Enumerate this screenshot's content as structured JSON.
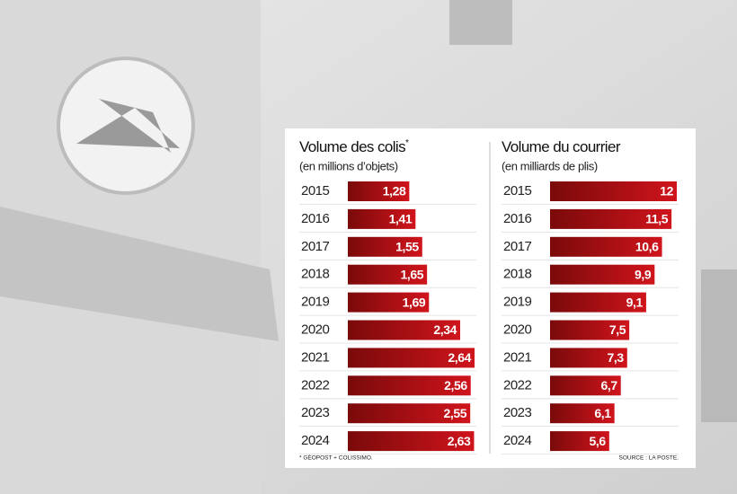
{
  "chart_data": [
    {
      "type": "bar",
      "orientation": "horizontal",
      "title": "Volume des colis",
      "title_note": "*",
      "subtitle": "(en millions d’objets)",
      "categories": [
        "2015",
        "2016",
        "2017",
        "2018",
        "2019",
        "2020",
        "2021",
        "2022",
        "2023",
        "2024"
      ],
      "values": [
        1.28,
        1.41,
        1.55,
        1.65,
        1.69,
        2.34,
        2.64,
        2.56,
        2.55,
        2.63
      ],
      "value_labels": [
        "1,28",
        "1,41",
        "1,55",
        "1,65",
        "1,69",
        "2,34",
        "2,64",
        "2,56",
        "2,55",
        "2,63"
      ],
      "color": "#d0141c"
    },
    {
      "type": "bar",
      "orientation": "horizontal",
      "title": "Volume du courrier",
      "subtitle": "(en milliards de plis)",
      "categories": [
        "2015",
        "2016",
        "2017",
        "2018",
        "2019",
        "2020",
        "2021",
        "2022",
        "2023",
        "2024"
      ],
      "values": [
        12,
        11.5,
        10.6,
        9.9,
        9.1,
        7.5,
        7.3,
        6.7,
        6.1,
        5.6
      ],
      "value_labels": [
        "12",
        "11,5",
        "10,6",
        "9,9",
        "9,1",
        "7,5",
        "7,3",
        "6,7",
        "6,1",
        "5,6"
      ],
      "color": "#d0141c"
    }
  ],
  "footnote": "* GÉOPOST + COLISSIMO.",
  "source": "SOURCE : LA POSTE."
}
